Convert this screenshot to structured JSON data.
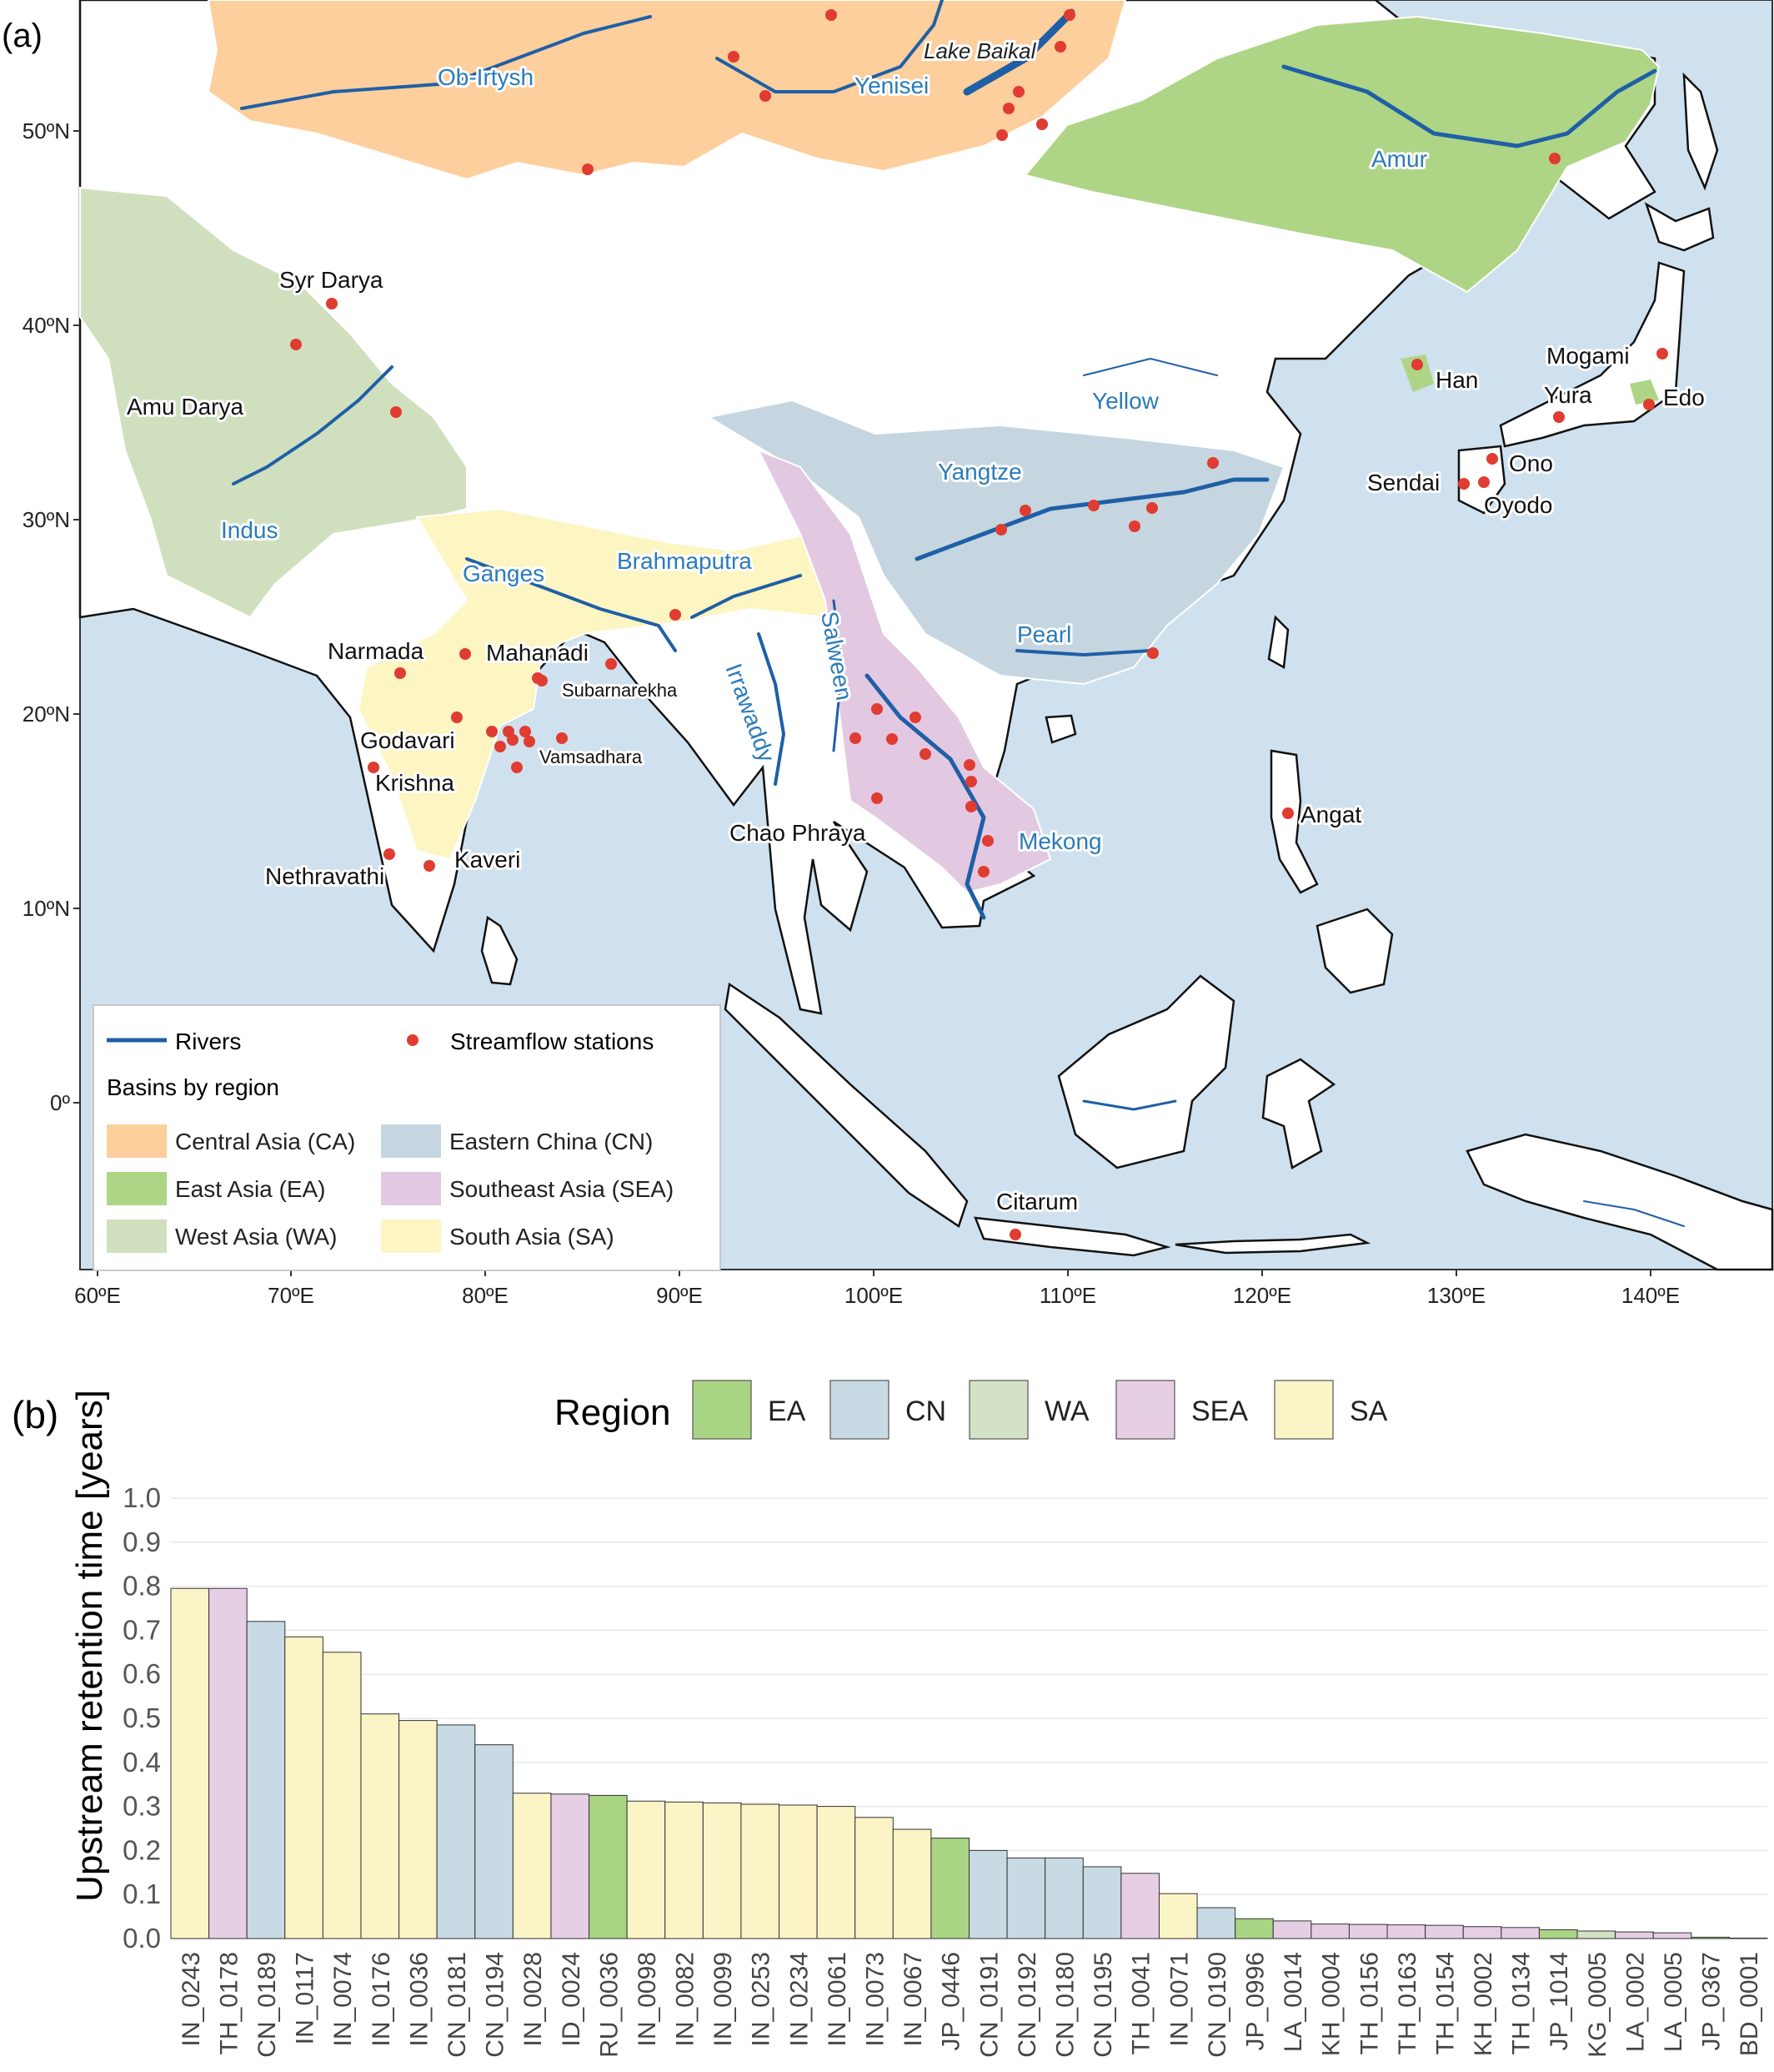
{
  "panel_a": {
    "label": "(a)",
    "lat_ticks": [
      "50ºN",
      "40ºN",
      "30ºN",
      "20ºN",
      "10ºN",
      "0º"
    ],
    "lon_ticks": [
      "60ºE",
      "70ºE",
      "80ºE",
      "90ºE",
      "100ºE",
      "110ºE",
      "120ºE",
      "130ºE",
      "140ºE"
    ],
    "river_labels": [
      "Ob-Irtysh",
      "Yenisei",
      "Amur",
      "Yellow",
      "Yangtze",
      "Indus",
      "Ganges",
      "Brahmaputra",
      "Salween",
      "Irrawaddy",
      "Pearl",
      "Mekong"
    ],
    "lake_label": "Lake Baikal",
    "station_labels": [
      "Syr Darya",
      "Amu Darya",
      "Narmada",
      "Mahanadi",
      "Subarnarekha",
      "Godavari",
      "Vamsadhara",
      "Krishna",
      "Kaveri",
      "Nethravathi",
      "Chao Phraya",
      "Angat",
      "Citarum",
      "Han",
      "Mogami",
      "Yura",
      "Edo",
      "Sendai",
      "Ono",
      "Oyodo"
    ],
    "legend": {
      "rivers": "Rivers",
      "stations": "Streamflow stations",
      "basins_title": "Basins by region",
      "regions": [
        {
          "label": "Central Asia (CA)",
          "color": "#fdcf9c"
        },
        {
          "label": "Eastern China (CN)",
          "color": "#c5d6e1"
        },
        {
          "label": "East Asia (EA)",
          "color": "#aed585"
        },
        {
          "label": "Southeast Asia (SEA)",
          "color": "#e3c8e2"
        },
        {
          "label": "West Asia (WA)",
          "color": "#d0e0bf"
        },
        {
          "label": "South Asia (SA)",
          "color": "#fdf5c2"
        }
      ]
    },
    "colors": {
      "ocean": "#cfe1ee",
      "land": "#ffffff",
      "river": "#1f5fa6",
      "river_label": "#2b7bb9",
      "station": "#e03c31"
    }
  },
  "panel_b": {
    "label": "(b)",
    "legend_title": "Region",
    "legend": [
      {
        "label": "EA",
        "color": "#a9d484"
      },
      {
        "label": "CN",
        "color": "#c8dae3"
      },
      {
        "label": "WA",
        "color": "#d3e2c5"
      },
      {
        "label": "SEA",
        "color": "#e6cfe5"
      },
      {
        "label": "SA",
        "color": "#fbf4c6"
      }
    ]
  },
  "chart_data": {
    "type": "bar",
    "title": "",
    "xlabel": "",
    "ylabel": "Upstream retention time [years]",
    "ylim": [
      0,
      1.0
    ],
    "yticks": [
      "0.0",
      "0.1",
      "0.2",
      "0.3",
      "0.4",
      "0.5",
      "0.6",
      "0.7",
      "0.8",
      "0.9",
      "1.0"
    ],
    "grid": true,
    "legend_placement": "top",
    "categories": [
      "IN_0243",
      "TH_0178",
      "CN_0189",
      "IN_0117",
      "IN_0074",
      "IN_0176",
      "IN_0036",
      "CN_0181",
      "CN_0194",
      "IN_0028",
      "ID_0024",
      "RU_0036",
      "IN_0098",
      "IN_0082",
      "IN_0099",
      "IN_0253",
      "IN_0234",
      "IN_0061",
      "IN_0073",
      "IN_0067",
      "JP_0446",
      "CN_0191",
      "CN_0192",
      "CN_0180",
      "CN_0195",
      "TH_0041",
      "IN_0071",
      "CN_0190",
      "JP_0996",
      "LA_0014",
      "KH_0004",
      "TH_0156",
      "TH_0163",
      "TH_0154",
      "KH_0002",
      "TH_0134",
      "JP_1014",
      "KG_0005",
      "LA_0002",
      "LA_0005",
      "JP_0367",
      "BD_0001"
    ],
    "values": [
      0.795,
      0.795,
      0.72,
      0.685,
      0.65,
      0.51,
      0.495,
      0.485,
      0.44,
      0.33,
      0.328,
      0.325,
      0.312,
      0.31,
      0.308,
      0.305,
      0.303,
      0.3,
      0.275,
      0.248,
      0.228,
      0.2,
      0.183,
      0.183,
      0.163,
      0.148,
      0.102,
      0.07,
      0.045,
      0.04,
      0.033,
      0.032,
      0.031,
      0.03,
      0.027,
      0.025,
      0.02,
      0.017,
      0.015,
      0.013,
      0.003,
      0.001
    ],
    "regions": [
      "SA",
      "SEA",
      "CN",
      "SA",
      "SA",
      "SA",
      "SA",
      "CN",
      "CN",
      "SA",
      "SEA",
      "EA",
      "SA",
      "SA",
      "SA",
      "SA",
      "SA",
      "SA",
      "SA",
      "SA",
      "EA",
      "CN",
      "CN",
      "CN",
      "CN",
      "SEA",
      "SA",
      "CN",
      "EA",
      "SEA",
      "SEA",
      "SEA",
      "SEA",
      "SEA",
      "SEA",
      "SEA",
      "EA",
      "WA",
      "SEA",
      "SEA",
      "EA",
      "SA"
    ]
  }
}
